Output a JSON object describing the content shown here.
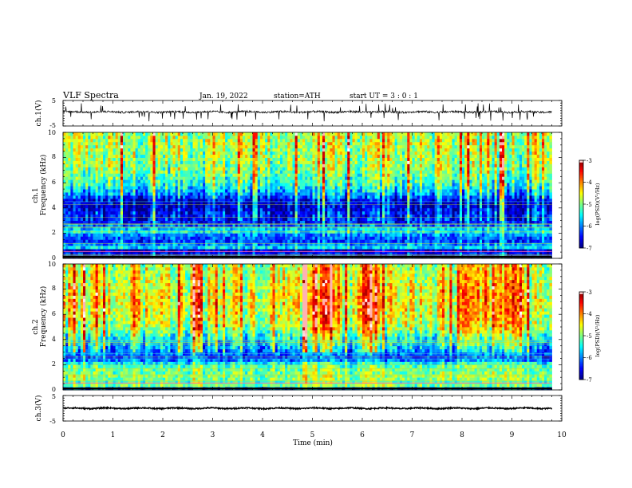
{
  "header": {
    "title": "VLF  Spectra",
    "date": "Jan. 19, 2022",
    "station": "station=ATH",
    "start": "start  UT  =    3  : 0   : 1"
  },
  "chart_data": [
    {
      "type": "line",
      "panel": "ch1-waveform",
      "ylabel": "ch.1(V)",
      "ylim": [
        -5,
        5
      ],
      "yticks": [
        "5",
        "-5"
      ],
      "xlim": [
        0,
        10
      ],
      "data_end_min": 9.8,
      "baseline_v": 0.5,
      "noise_v": 0.4,
      "spike_v": 3.5
    },
    {
      "type": "heatmap",
      "panel": "ch1-spectrogram",
      "ylabel_lines": [
        "ch.1",
        "Frequency  (kHz)"
      ],
      "ylim": [
        0,
        10
      ],
      "yticks": [
        "0",
        "2",
        "4",
        "6",
        "8",
        "10"
      ],
      "xlim": [
        0,
        10
      ],
      "data_end_min": 9.8,
      "colorbar": {
        "label": "log(PSD)(V²/Hz)",
        "range": [
          -7,
          -3
        ],
        "ticks": [
          "-3",
          "-4",
          "-5",
          "-6",
          "-7"
        ]
      },
      "spectral_profile": [
        {
          "f": 0.0,
          "v": -6.8
        },
        {
          "f": 0.3,
          "v": -6.3
        },
        {
          "f": 0.6,
          "v": -6.9
        },
        {
          "f": 0.9,
          "v": -5.6
        },
        {
          "f": 1.3,
          "v": -6.3
        },
        {
          "f": 1.8,
          "v": -6.1
        },
        {
          "f": 2.2,
          "v": -5.4
        },
        {
          "f": 2.5,
          "v": -6.0
        },
        {
          "f": 3.0,
          "v": -6.5
        },
        {
          "f": 3.5,
          "v": -6.4
        },
        {
          "f": 4.0,
          "v": -6.7
        },
        {
          "f": 4.6,
          "v": -6.6
        },
        {
          "f": 5.0,
          "v": -6.0
        },
        {
          "f": 6.0,
          "v": -5.3
        },
        {
          "f": 7.0,
          "v": -5.0
        },
        {
          "f": 8.0,
          "v": -4.9
        },
        {
          "f": 9.0,
          "v": -4.8
        },
        {
          "f": 10.0,
          "v": -4.8
        }
      ]
    },
    {
      "type": "heatmap",
      "panel": "ch2-spectrogram",
      "ylabel_lines": [
        "ch.2",
        "Frequency  (kHz)"
      ],
      "ylim": [
        0,
        10
      ],
      "yticks": [
        "0",
        "2",
        "4",
        "6",
        "8",
        "10"
      ],
      "xlim": [
        0,
        10
      ],
      "data_end_min": 9.8,
      "colorbar": {
        "label": "log(PSD)(V²/Hz)",
        "range": [
          -7,
          -3
        ],
        "ticks": [
          "-3",
          "-4",
          "-5",
          "-6",
          "-7"
        ]
      },
      "spectral_profile": [
        {
          "f": 0.0,
          "v": -6.6
        },
        {
          "f": 0.3,
          "v": -5.0
        },
        {
          "f": 0.6,
          "v": -5.2
        },
        {
          "f": 1.0,
          "v": -5.0
        },
        {
          "f": 1.5,
          "v": -5.1
        },
        {
          "f": 2.0,
          "v": -5.3
        },
        {
          "f": 2.5,
          "v": -6.3
        },
        {
          "f": 3.0,
          "v": -6.0
        },
        {
          "f": 3.5,
          "v": -5.7
        },
        {
          "f": 4.0,
          "v": -5.5
        },
        {
          "f": 5.0,
          "v": -4.8
        },
        {
          "f": 6.0,
          "v": -4.6
        },
        {
          "f": 7.0,
          "v": -4.5
        },
        {
          "f": 8.0,
          "v": -4.6
        },
        {
          "f": 9.0,
          "v": -4.7
        },
        {
          "f": 10.0,
          "v": -4.8
        }
      ],
      "intense_intervals_min": [
        [
          2.6,
          2.8
        ],
        [
          4.8,
          5.5
        ],
        [
          6.0,
          6.4
        ],
        [
          7.9,
          8.3
        ],
        [
          8.6,
          9.1
        ]
      ]
    },
    {
      "type": "line",
      "panel": "ch3-waveform",
      "ylabel": "ch.3(V)",
      "ylim": [
        -5,
        5
      ],
      "yticks": [
        "5",
        "-5"
      ],
      "xlim": [
        0,
        10
      ],
      "data_end_min": 9.8,
      "baseline_v": 0.0,
      "noise_v": 0.25
    }
  ],
  "xaxis": {
    "label": "Time  (min)",
    "ticks": [
      "0",
      "1",
      "2",
      "3",
      "4",
      "5",
      "6",
      "7",
      "8",
      "9",
      "10"
    ]
  }
}
